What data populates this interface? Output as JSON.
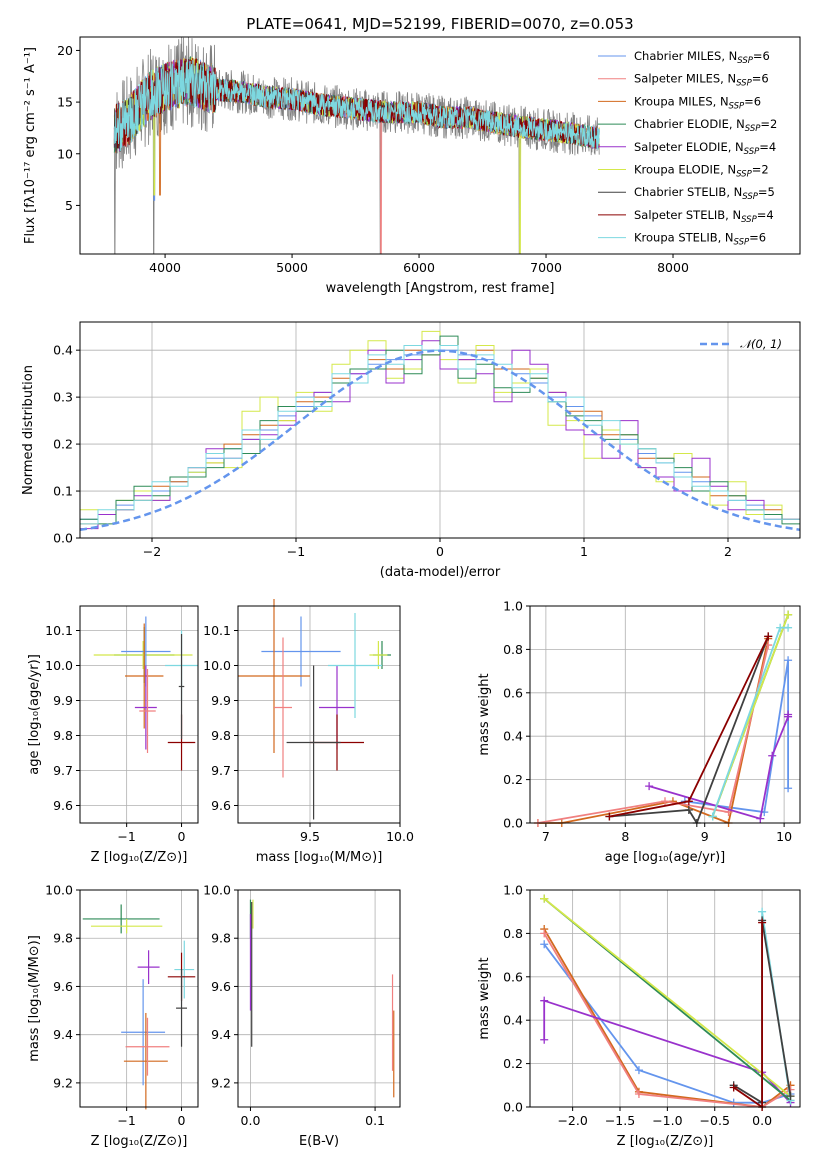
{
  "chart_data": [
    {
      "type": "line",
      "title": "PLATE=0641, MJD=52199, FIBERID=0070, z=0.053",
      "xlabel": "wavelength [Angstrom, rest frame]",
      "ylabel": "Flux [fλ10⁻¹⁷ erg cm⁻² s⁻¹ A⁻¹]",
      "xlim": [
        3330,
        9000
      ],
      "ylim": [
        0.3,
        21.3
      ],
      "xticks": [
        4000,
        5000,
        6000,
        7000,
        8000
      ],
      "yticks": [
        5,
        10,
        15,
        20
      ],
      "grid": false,
      "legend_position": "top-right",
      "observed_spectrum_color": "#808080",
      "series": [
        {
          "name": "Chabrier MILES, N_SSP=6",
          "color": "#6495ed"
        },
        {
          "name": "Salpeter MILES, N_SSP=6",
          "color": "#f08080"
        },
        {
          "name": "Kroupa MILES, N_SSP=6",
          "color": "#d2691e"
        },
        {
          "name": "Chabrier ELODIE, N_SSP=2",
          "color": "#2e8b57"
        },
        {
          "name": "Salpeter ELODIE, N_SSP=4",
          "color": "#9932cc"
        },
        {
          "name": "Kroupa ELODIE, N_SSP=2",
          "color": "#d4e84a"
        },
        {
          "name": "Chabrier STELIB, N_SSP=5",
          "color": "#404040"
        },
        {
          "name": "Salpeter STELIB, N_SSP=4",
          "color": "#8b0000"
        },
        {
          "name": "Kroupa STELIB, N_SSP=6",
          "color": "#7dd8e0"
        }
      ],
      "continuum_points": [
        {
          "x": 3600,
          "y": 12.3
        },
        {
          "x": 3700,
          "y": 13.0
        },
        {
          "x": 3800,
          "y": 14.5
        },
        {
          "x": 3900,
          "y": 15.8
        },
        {
          "x": 4000,
          "y": 16.5
        },
        {
          "x": 4200,
          "y": 17.0
        },
        {
          "x": 4400,
          "y": 16.2
        },
        {
          "x": 4600,
          "y": 16.0
        },
        {
          "x": 4800,
          "y": 15.5
        },
        {
          "x": 5000,
          "y": 15.3
        },
        {
          "x": 5200,
          "y": 14.8
        },
        {
          "x": 5400,
          "y": 14.5
        },
        {
          "x": 5600,
          "y": 14.2
        },
        {
          "x": 5800,
          "y": 14.0
        },
        {
          "x": 6000,
          "y": 14.0
        },
        {
          "x": 6200,
          "y": 13.5
        },
        {
          "x": 6400,
          "y": 13.5
        },
        {
          "x": 6600,
          "y": 13.0
        },
        {
          "x": 6800,
          "y": 12.6
        },
        {
          "x": 7000,
          "y": 12.3
        },
        {
          "x": 7200,
          "y": 12.0
        },
        {
          "x": 7400,
          "y": 11.5
        }
      ]
    },
    {
      "type": "line",
      "xlabel": "(data-model)/error",
      "ylabel": "Normed distribution",
      "xlim": [
        -2.5,
        2.5
      ],
      "ylim": [
        0.0,
        0.46
      ],
      "xticks": [
        -2,
        -1,
        0,
        1,
        2
      ],
      "yticks": [
        0.0,
        0.1,
        0.2,
        0.3,
        0.4
      ],
      "grid": true,
      "legend_position": "top-right",
      "reference": {
        "name": "𝒩(0, 1)",
        "color": "#6495ed",
        "style": "dashed",
        "mean": 0,
        "sigma": 1
      },
      "series": [
        {
          "color": "#6495ed",
          "values": [
            0.03,
            0.04,
            0.05,
            0.07,
            0.08,
            0.1,
            0.12,
            0.14,
            0.17,
            0.19,
            0.21,
            0.23,
            0.26,
            0.28,
            0.31,
            0.33,
            0.35,
            0.37,
            0.38,
            0.39,
            0.4,
            0.4,
            0.39,
            0.38,
            0.36,
            0.35,
            0.33,
            0.3,
            0.28,
            0.26,
            0.23,
            0.21,
            0.18,
            0.16,
            0.14,
            0.12,
            0.1,
            0.08,
            0.07,
            0.05,
            0.04,
            0.03
          ]
        },
        {
          "color": "#d2691e",
          "values": [
            0.02,
            0.03,
            0.05,
            0.06,
            0.08,
            0.11,
            0.12,
            0.15,
            0.16,
            0.2,
            0.22,
            0.24,
            0.25,
            0.29,
            0.3,
            0.34,
            0.33,
            0.38,
            0.36,
            0.4,
            0.39,
            0.41,
            0.38,
            0.4,
            0.36,
            0.36,
            0.34,
            0.31,
            0.27,
            0.27,
            0.22,
            0.22,
            0.17,
            0.17,
            0.13,
            0.13,
            0.09,
            0.09,
            0.06,
            0.06,
            0.04,
            0.03
          ]
        },
        {
          "color": "#d4e84a",
          "values": [
            0.04,
            0.06,
            0.05,
            0.08,
            0.1,
            0.08,
            0.13,
            0.14,
            0.16,
            0.15,
            0.27,
            0.3,
            0.25,
            0.31,
            0.27,
            0.37,
            0.4,
            0.42,
            0.34,
            0.36,
            0.44,
            0.38,
            0.33,
            0.41,
            0.31,
            0.33,
            0.36,
            0.24,
            0.25,
            0.17,
            0.23,
            0.2,
            0.15,
            0.12,
            0.18,
            0.1,
            0.07,
            0.12,
            0.05,
            0.07,
            0.04,
            0.03
          ]
        },
        {
          "color": "#9932cc",
          "values": [
            0.03,
            0.02,
            0.05,
            0.06,
            0.09,
            0.08,
            0.13,
            0.15,
            0.19,
            0.17,
            0.21,
            0.22,
            0.24,
            0.3,
            0.31,
            0.29,
            0.35,
            0.4,
            0.33,
            0.38,
            0.42,
            0.36,
            0.38,
            0.35,
            0.29,
            0.4,
            0.37,
            0.31,
            0.23,
            0.22,
            0.17,
            0.25,
            0.15,
            0.13,
            0.1,
            0.17,
            0.11,
            0.06,
            0.08,
            0.04,
            0.04,
            0.02
          ]
        },
        {
          "color": "#2e8b57",
          "values": [
            0.06,
            0.04,
            0.03,
            0.08,
            0.11,
            0.09,
            0.13,
            0.13,
            0.15,
            0.19,
            0.18,
            0.25,
            0.28,
            0.27,
            0.29,
            0.33,
            0.36,
            0.36,
            0.4,
            0.35,
            0.39,
            0.43,
            0.34,
            0.37,
            0.32,
            0.31,
            0.34,
            0.29,
            0.26,
            0.25,
            0.21,
            0.22,
            0.19,
            0.17,
            0.15,
            0.1,
            0.12,
            0.09,
            0.06,
            0.05,
            0.03,
            0.03
          ]
        },
        {
          "color": "#7dd8e0",
          "values": [
            0.02,
            0.03,
            0.06,
            0.06,
            0.08,
            0.12,
            0.11,
            0.15,
            0.18,
            0.17,
            0.23,
            0.21,
            0.27,
            0.3,
            0.28,
            0.35,
            0.33,
            0.39,
            0.37,
            0.41,
            0.4,
            0.41,
            0.36,
            0.39,
            0.37,
            0.32,
            0.35,
            0.29,
            0.3,
            0.24,
            0.25,
            0.2,
            0.19,
            0.16,
            0.13,
            0.11,
            0.1,
            0.08,
            0.06,
            0.04,
            0.04,
            0.02
          ]
        }
      ]
    },
    {
      "type": "scatter",
      "xlabel": "Z [log₁₀(Z/Z⊙)]",
      "ylabel": "age  [log₁₀(age/yr)]",
      "xlim": [
        -1.85,
        0.3
      ],
      "ylim": [
        9.55,
        10.17
      ],
      "xticks": [
        -1,
        0
      ],
      "yticks": [
        9.6,
        9.7,
        9.8,
        9.9,
        10.0,
        10.1
      ],
      "grid": true,
      "points": [
        {
          "x": -0.68,
          "y": 10.03,
          "xerr": 0.55,
          "yerr": 0.08,
          "color": "#2e8b57"
        },
        {
          "x": -0.7,
          "y": 10.03,
          "xerr": 0.9,
          "yerr": 0.04,
          "color": "#d4e84a"
        },
        {
          "x": -0.65,
          "y": 10.04,
          "xerr": 0.45,
          "yerr": 0.1,
          "color": "#6495ed"
        },
        {
          "x": -0.68,
          "y": 9.97,
          "xerr": 0.35,
          "yerr": 0.15,
          "color": "#d2691e"
        },
        {
          "x": -0.65,
          "y": 9.88,
          "xerr": 0.2,
          "yerr": 0.12,
          "color": "#9932cc"
        },
        {
          "x": -0.62,
          "y": 9.87,
          "xerr": 0.15,
          "yerr": 0.12,
          "color": "#f08080"
        },
        {
          "x": 0.0,
          "y": 10.0,
          "xerr": 0.3,
          "yerr": 0.1,
          "color": "#7dd8e0"
        },
        {
          "x": 0.0,
          "y": 9.78,
          "xerr": 0.25,
          "yerr": 0.08,
          "color": "#8b0000"
        },
        {
          "x": 0.0,
          "y": 9.94,
          "xerr": 0.05,
          "yerr": 0.15,
          "color": "#404040"
        }
      ]
    },
    {
      "type": "scatter",
      "xlabel": "mass [log₁₀(M/M⊙)]",
      "ylabel": "",
      "xlim": [
        9.1,
        10.0
      ],
      "ylim": [
        9.55,
        10.17
      ],
      "xticks": [
        9.5,
        10.0
      ],
      "yticks": [
        9.6,
        9.7,
        9.8,
        9.9,
        10.0,
        10.1
      ],
      "grid": true,
      "points": [
        {
          "x": 9.9,
          "y": 10.03,
          "xerr": 0.05,
          "yerr": 0.04,
          "color": "#2e8b57"
        },
        {
          "x": 9.88,
          "y": 10.03,
          "xerr": 0.05,
          "yerr": 0.04,
          "color": "#d4e84a"
        },
        {
          "x": 9.45,
          "y": 10.04,
          "xerr": 0.22,
          "yerr": 0.1,
          "color": "#6495ed"
        },
        {
          "x": 9.3,
          "y": 9.97,
          "xerr": 0.2,
          "yerr": 0.22,
          "color": "#d2691e"
        },
        {
          "x": 9.65,
          "y": 9.88,
          "xerr": 0.1,
          "yerr": 0.12,
          "color": "#9932cc"
        },
        {
          "x": 9.35,
          "y": 9.88,
          "xerr": 0.05,
          "yerr": 0.2,
          "color": "#f08080"
        },
        {
          "x": 9.75,
          "y": 10.0,
          "xerr": 0.15,
          "yerr": 0.15,
          "color": "#7dd8e0"
        },
        {
          "x": 9.65,
          "y": 9.78,
          "xerr": 0.15,
          "yerr": 0.08,
          "color": "#8b0000"
        },
        {
          "x": 9.52,
          "y": 9.78,
          "xerr": 0.15,
          "yerr": 0.22,
          "color": "#404040"
        }
      ]
    },
    {
      "type": "line",
      "xlabel": "age  [log₁₀(age/yr)]",
      "ylabel": "mass weight",
      "xlim": [
        6.8,
        10.2
      ],
      "ylim": [
        0.0,
        1.0
      ],
      "xticks": [
        7,
        8,
        9,
        10
      ],
      "yticks": [
        0.0,
        0.2,
        0.4,
        0.6,
        0.8,
        1.0
      ],
      "grid": true,
      "series": [
        {
          "color": "#6495ed",
          "x": [
            8.75,
            9.75,
            10.05,
            10.05
          ],
          "y": [
            0.1,
            0.05,
            0.75,
            0.16
          ]
        },
        {
          "color": "#d2691e",
          "x": [
            6.9,
            7.2,
            8.6,
            9.3,
            9.8
          ],
          "y": [
            0.0,
            0.0,
            0.1,
            0.0,
            0.85
          ]
        },
        {
          "color": "#f08080",
          "x": [
            6.9,
            8.5,
            9.3,
            9.8
          ],
          "y": [
            0.0,
            0.1,
            0.05,
            0.82
          ]
        },
        {
          "color": "#9932cc",
          "x": [
            8.3,
            9.7,
            9.85,
            10.05,
            10.05
          ],
          "y": [
            0.17,
            0.02,
            0.31,
            0.49,
            0.5
          ]
        },
        {
          "color": "#2e8b57",
          "x": [
            9.1,
            10.05
          ],
          "y": [
            0.03,
            0.96
          ]
        },
        {
          "color": "#d4e84a",
          "x": [
            9.1,
            10.05
          ],
          "y": [
            0.03,
            0.96
          ]
        },
        {
          "color": "#7dd8e0",
          "x": [
            9.1,
            9.95,
            10.05
          ],
          "y": [
            0.03,
            0.9,
            0.9
          ]
        },
        {
          "color": "#404040",
          "x": [
            7.8,
            8.8,
            8.9,
            9.8
          ],
          "y": [
            0.03,
            0.06,
            0.0,
            0.86
          ]
        },
        {
          "color": "#8b0000",
          "x": [
            7.8,
            8.8,
            9.8
          ],
          "y": [
            0.03,
            0.1,
            0.86
          ]
        }
      ]
    },
    {
      "type": "scatter",
      "xlabel": "Z [log₁₀(Z/Z⊙)]",
      "ylabel": "mass [log₁₀(M/M⊙)]",
      "xlim": [
        -1.85,
        0.3
      ],
      "ylim": [
        9.1,
        10.0
      ],
      "xticks": [
        -1,
        0
      ],
      "yticks": [
        9.2,
        9.4,
        9.6,
        9.8,
        10.0
      ],
      "grid": true,
      "points": [
        {
          "x": -1.1,
          "y": 9.88,
          "xerr": 0.7,
          "yerr": 0.06,
          "color": "#2e8b57"
        },
        {
          "x": -1.0,
          "y": 9.85,
          "xerr": 0.65,
          "yerr": 0.03,
          "color": "#d4e84a"
        },
        {
          "x": -0.7,
          "y": 9.41,
          "xerr": 0.4,
          "yerr": 0.22,
          "color": "#6495ed"
        },
        {
          "x": -0.65,
          "y": 9.29,
          "xerr": 0.4,
          "yerr": 0.2,
          "color": "#d2691e"
        },
        {
          "x": -0.6,
          "y": 9.68,
          "xerr": 0.2,
          "yerr": 0.07,
          "color": "#9932cc"
        },
        {
          "x": -0.62,
          "y": 9.35,
          "xerr": 0.4,
          "yerr": 0.12,
          "color": "#f08080"
        },
        {
          "x": 0.05,
          "y": 9.67,
          "xerr": 0.18,
          "yerr": 0.12,
          "color": "#7dd8e0"
        },
        {
          "x": 0.0,
          "y": 9.64,
          "xerr": 0.25,
          "yerr": 0.1,
          "color": "#8b0000"
        },
        {
          "x": 0.0,
          "y": 9.51,
          "xerr": 0.1,
          "yerr": 0.16,
          "color": "#404040"
        }
      ]
    },
    {
      "type": "scatter",
      "xlabel": "E(B-V)",
      "ylabel": "",
      "xlim": [
        -0.01,
        0.12
      ],
      "ylim": [
        9.1,
        10.0
      ],
      "xticks": [
        0.0,
        0.1
      ],
      "yticks": [
        9.2,
        9.4,
        9.6,
        9.8,
        10.0
      ],
      "grid": true,
      "points": [
        {
          "x": 0.0,
          "y": 9.88,
          "xerr": 0.0,
          "yerr": 0.08,
          "color": "#2e8b57"
        },
        {
          "x": 0.002,
          "y": 9.9,
          "xerr": 0.0,
          "yerr": 0.06,
          "color": "#d4e84a"
        },
        {
          "x": 0.001,
          "y": 9.65,
          "xerr": 0.0,
          "yerr": 0.3,
          "color": "#404040"
        },
        {
          "x": 0.0,
          "y": 9.7,
          "xerr": 0.0,
          "yerr": 0.2,
          "color": "#9932cc"
        },
        {
          "x": 0.115,
          "y": 9.32,
          "xerr": 0.0,
          "yerr": 0.18,
          "color": "#d2691e"
        },
        {
          "x": 0.114,
          "y": 9.45,
          "xerr": 0.0,
          "yerr": 0.2,
          "color": "#f08080"
        }
      ]
    },
    {
      "type": "line",
      "xlabel": "Z [log₁₀(Z/Z⊙)]",
      "ylabel": "mass weight",
      "xlim": [
        -2.45,
        0.4
      ],
      "ylim": [
        0.0,
        1.0
      ],
      "xticks": [
        -2.0,
        -1.5,
        -1.0,
        -0.5,
        0.0
      ],
      "yticks": [
        0.0,
        0.2,
        0.4,
        0.6,
        0.8,
        1.0
      ],
      "grid": true,
      "series": [
        {
          "color": "#6495ed",
          "x": [
            -2.3,
            -1.3,
            -0.3,
            0.0,
            0.3
          ],
          "y": [
            0.75,
            0.17,
            0.02,
            0.02,
            0.06
          ]
        },
        {
          "color": "#d2691e",
          "x": [
            -2.3,
            -1.3,
            0.0,
            0.3
          ],
          "y": [
            0.82,
            0.07,
            0.0,
            0.1
          ]
        },
        {
          "color": "#f08080",
          "x": [
            -2.3,
            -1.3,
            0.0,
            0.3
          ],
          "y": [
            0.8,
            0.06,
            0.0,
            0.08
          ]
        },
        {
          "color": "#9932cc",
          "x": [
            -2.3,
            -2.3,
            0.0,
            0.3
          ],
          "y": [
            0.31,
            0.49,
            0.16,
            0.02
          ]
        },
        {
          "color": "#2e8b57",
          "x": [
            -2.3,
            0.3
          ],
          "y": [
            0.96,
            0.03
          ]
        },
        {
          "color": "#d4e84a",
          "x": [
            -2.3,
            0.3
          ],
          "y": [
            0.96,
            0.05
          ]
        },
        {
          "color": "#7dd8e0",
          "x": [
            0.0,
            0.0,
            0.3
          ],
          "y": [
            0.0,
            0.9,
            0.03
          ]
        },
        {
          "color": "#404040",
          "x": [
            -0.3,
            0.0,
            0.0,
            0.3
          ],
          "y": [
            0.1,
            0.02,
            0.86,
            0.05
          ]
        },
        {
          "color": "#8b0000",
          "x": [
            -0.3,
            0.0,
            0.0
          ],
          "y": [
            0.09,
            0.0,
            0.85
          ]
        }
      ]
    }
  ]
}
